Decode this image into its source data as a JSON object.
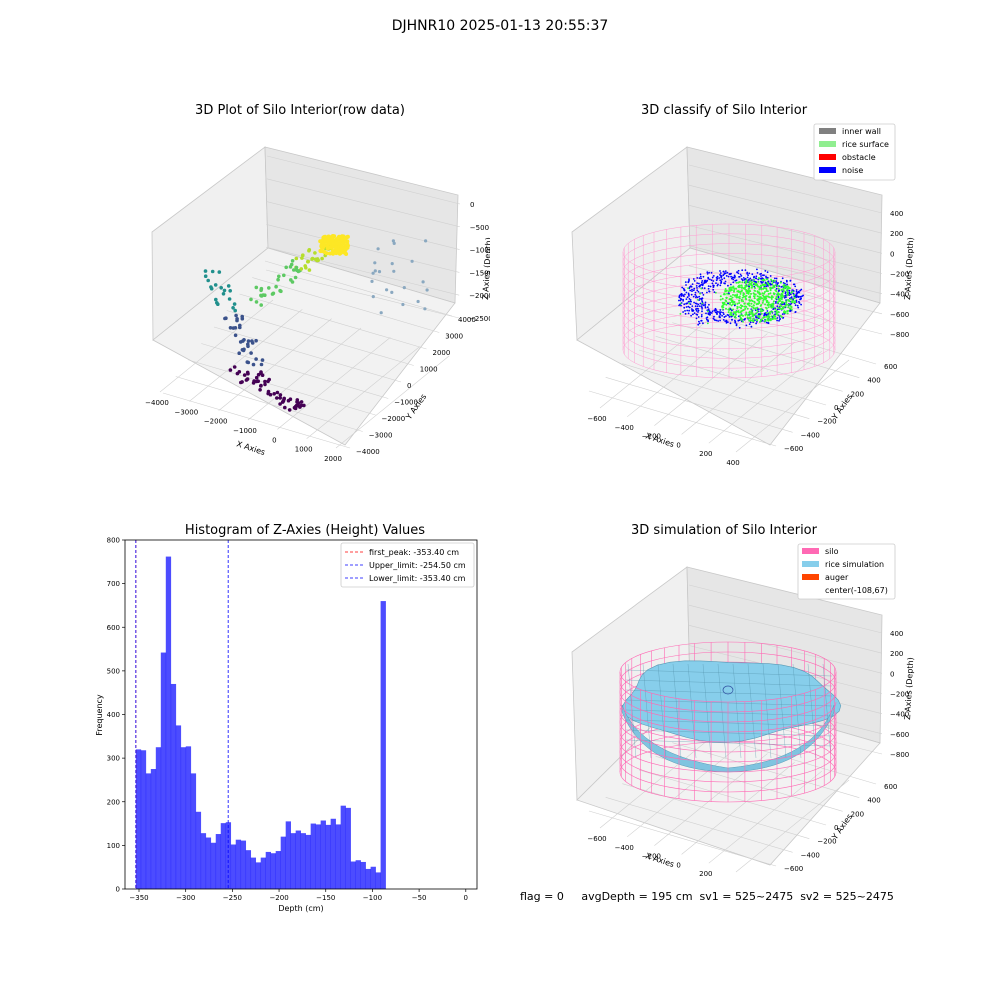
{
  "figure": {
    "suptitle": "DJHNR10 2025-01-13 20:55:37",
    "status_line": "flag = 0     avgDepth = 195 cm  sv1 = 525~2475  sv2 = 525~2475"
  },
  "chart_data": [
    {
      "type": "scatter",
      "title": "3D Plot of Silo Interior(row data)",
      "xlabel": "X Axies",
      "ylabel": "Y Axies",
      "zlabel": "Z Axies (Depth)",
      "x_ticks": [
        "−4000",
        "−3000",
        "−2000",
        "−1000",
        "0",
        "1000",
        "2000"
      ],
      "y_ticks": [
        "−4000",
        "−3000",
        "−2000",
        "−1000",
        "0",
        "1000",
        "2000",
        "3000",
        "4000"
      ],
      "z_ticks": [
        "0",
        "−500",
        "−1000",
        "−1500",
        "−2000",
        "−2500"
      ],
      "grid": true
    },
    {
      "type": "scatter",
      "title": "3D classify of Silo Interior",
      "xlabel": "X Axies",
      "ylabel": "Y Axies",
      "zlabel": "Z Axies (Depth)",
      "x_ticks": [
        "−600",
        "−400",
        "−200",
        "0",
        "200",
        "400"
      ],
      "y_ticks": [
        "−600",
        "−400",
        "−200",
        "0",
        "200",
        "400",
        "600"
      ],
      "z_ticks": [
        "400",
        "200",
        "0",
        "−200",
        "−400",
        "−600",
        "−800"
      ],
      "legend": [
        {
          "label": "inner wall",
          "color": "#808080"
        },
        {
          "label": "rice surface",
          "color": "#90ee90"
        },
        {
          "label": "obstacle",
          "color": "#ff0000"
        },
        {
          "label": "noise",
          "color": "#0000ff"
        }
      ],
      "legend_position": "top-right",
      "grid": true
    },
    {
      "type": "bar",
      "title": "Histogram of Z-Axies (Height) Values",
      "xlabel": "Depth (cm)",
      "ylabel": "Frequency",
      "xlim": [
        -365,
        12
      ],
      "ylim": [
        0,
        800
      ],
      "x_ticks": [
        -350,
        -300,
        -250,
        -200,
        -150,
        -100,
        -50,
        0
      ],
      "y_ticks": [
        0,
        100,
        200,
        300,
        400,
        500,
        600,
        700,
        800
      ],
      "bin_start": -353.4,
      "bin_width": 5.35,
      "values": [
        320,
        318,
        265,
        275,
        325,
        542,
        762,
        470,
        375,
        325,
        327,
        265,
        177,
        128,
        118,
        106,
        126,
        151,
        153,
        102,
        113,
        111,
        89,
        72,
        61,
        72,
        85,
        82,
        87,
        120,
        155,
        128,
        134,
        128,
        124,
        150,
        148,
        157,
        147,
        161,
        148,
        191,
        186,
        63,
        66,
        62,
        46,
        51,
        38,
        660
      ],
      "bar_color": "#0000ff",
      "vlines": [
        {
          "label": "first_peak: -353.40 cm",
          "x": -353.4,
          "color": "#ff0000"
        },
        {
          "label": "Upper_limit: -254.50 cm",
          "x": -254.5,
          "color": "#0000ff"
        },
        {
          "label": "Lower_limit: -353.40 cm",
          "x": -353.4,
          "color": "#0000ff"
        }
      ],
      "legend_position": "top-right",
      "grid": false
    },
    {
      "type": "area",
      "title": "3D simulation of Silo Interior",
      "xlabel": "X Axies",
      "ylabel": "Y Axies",
      "zlabel": "Z Axies (Depth)",
      "x_ticks": [
        "−600",
        "−400",
        "−200",
        "0",
        "200",
        "400"
      ],
      "y_ticks": [
        "−600",
        "−400",
        "−200",
        "0",
        "200",
        "400",
        "600"
      ],
      "z_ticks": [
        "400",
        "200",
        "0",
        "−200",
        "−400",
        "−600",
        "−800"
      ],
      "legend": [
        {
          "label": "silo",
          "color": "#ff69b4"
        },
        {
          "label": "rice simulation",
          "color": "#87ceeb"
        },
        {
          "label": "auger",
          "color": "#ff4500"
        },
        {
          "label": "center(-108,67)",
          "color": ""
        }
      ],
      "legend_position": "top-right",
      "grid": true
    }
  ]
}
